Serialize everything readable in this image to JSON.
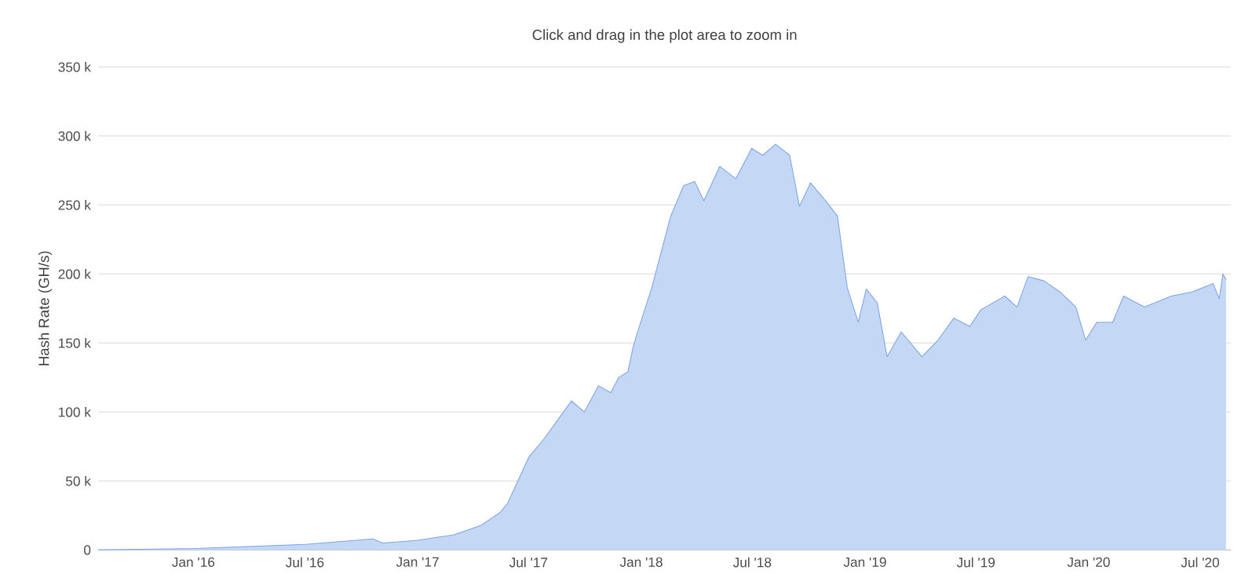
{
  "chart_data": {
    "type": "area",
    "subtitle": "Click and drag in the plot area to zoom in",
    "ylabel": "Hash Rate (GH/s)",
    "x": [
      "2015-07-30",
      "2016-01-01",
      "2016-07-01",
      "2016-10-20",
      "2016-11-05",
      "2017-01-01",
      "2017-03-01",
      "2017-04-15",
      "2017-05-15",
      "2017-05-28",
      "2017-07-01",
      "2017-07-27",
      "2017-08-22",
      "2017-09-09",
      "2017-09-30",
      "2017-10-23",
      "2017-11-12",
      "2017-11-25",
      "2017-12-10",
      "2017-12-18",
      "2017-12-23",
      "2018-01-18",
      "2018-02-18",
      "2018-03-11",
      "2018-03-29",
      "2018-04-13",
      "2018-05-09",
      "2018-06-04",
      "2018-06-30",
      "2018-07-18",
      "2018-08-08",
      "2018-08-31",
      "2018-09-16",
      "2018-10-04",
      "2018-10-25",
      "2018-11-17",
      "2018-12-03",
      "2018-12-21",
      "2019-01-03",
      "2019-01-21",
      "2019-02-06",
      "2019-03-01",
      "2019-04-04",
      "2019-04-30",
      "2019-05-26",
      "2019-06-21",
      "2019-07-09",
      "2019-08-17",
      "2019-09-06",
      "2019-09-24",
      "2019-10-20",
      "2019-11-15",
      "2019-12-11",
      "2019-12-27",
      "2020-01-14",
      "2020-02-09",
      "2020-02-27",
      "2020-04-01",
      "2020-05-15",
      "2020-06-18",
      "2020-07-22",
      "2020-08-01",
      "2020-08-07",
      "2020-08-12"
    ],
    "series": [
      {
        "color": "#7ca5e6",
        "values": [
          0,
          1000,
          4000,
          8000,
          5000,
          7000,
          11000,
          18000,
          27000,
          34000,
          67000,
          81000,
          97000,
          108000,
          100000,
          119000,
          114000,
          125000,
          129000,
          146000,
          154000,
          190000,
          242000,
          264000,
          267000,
          253000,
          278000,
          269000,
          291000,
          286000,
          294000,
          286000,
          249000,
          266000,
          255000,
          242000,
          190000,
          165000,
          189000,
          179000,
          140000,
          158000,
          140000,
          152000,
          168000,
          162000,
          174000,
          184000,
          176000,
          198000,
          195000,
          187000,
          176000,
          152000,
          165000,
          165000,
          184000,
          176000,
          184000,
          187000,
          193000,
          182000,
          200000,
          196000
        ]
      }
    ],
    "xlim": [
      "2015-07-30",
      "2020-08-20"
    ],
    "xticks": [
      {
        "value": "2016-01-01",
        "label": "Jan '16"
      },
      {
        "value": "2016-07-01",
        "label": "Jul '16"
      },
      {
        "value": "2017-01-01",
        "label": "Jan '17"
      },
      {
        "value": "2017-07-01",
        "label": "Jul '17"
      },
      {
        "value": "2018-01-01",
        "label": "Jan '18"
      },
      {
        "value": "2018-07-01",
        "label": "Jul '18"
      },
      {
        "value": "2019-01-01",
        "label": "Jan '19"
      },
      {
        "value": "2019-07-01",
        "label": "Jul '19"
      },
      {
        "value": "2020-01-01",
        "label": "Jan '20"
      },
      {
        "value": "2020-07-01",
        "label": "Jul '20"
      }
    ],
    "ylim": [
      0,
      350000
    ],
    "yticks": [
      {
        "value": 0,
        "label": "0"
      },
      {
        "value": 50000,
        "label": "50 k"
      },
      {
        "value": 100000,
        "label": "100 k"
      },
      {
        "value": 150000,
        "label": "150 k"
      },
      {
        "value": 200000,
        "label": "200 k"
      },
      {
        "value": 250000,
        "label": "250 k"
      },
      {
        "value": 300000,
        "label": "300 k"
      },
      {
        "value": 350000,
        "label": "350 k"
      }
    ],
    "grid": "y",
    "marker": "none",
    "line_style": "solid"
  }
}
